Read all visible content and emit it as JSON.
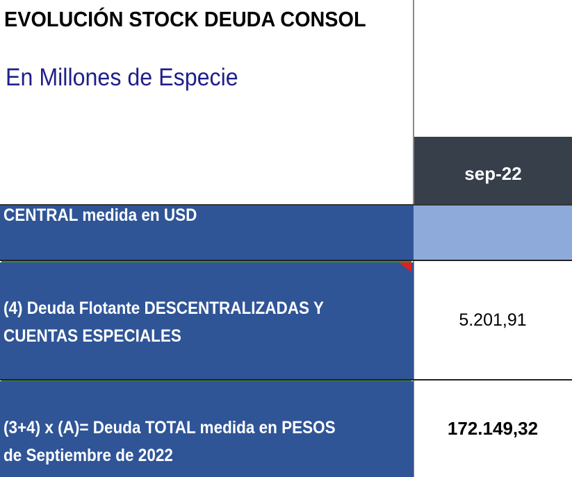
{
  "header": {
    "title": "EVOLUCIÓN STOCK DEUDA CONSOL",
    "subtitle": "En Millones de Especie"
  },
  "table": {
    "column_header": "sep-22",
    "rows": [
      {
        "label": [
          "CENTRAL medida en USD"
        ],
        "value": null
      },
      {
        "label": [
          "(4) Deuda Flotante DESCENTRALIZADAS Y",
          "CUENTAS ESPECIALES"
        ],
        "value": "5.201,91"
      },
      {
        "label": [
          "(3+4) x (A)= Deuda TOTAL medida en PESOS",
          "de Septiembre de 2022"
        ],
        "value": "172.149,32"
      }
    ]
  }
}
